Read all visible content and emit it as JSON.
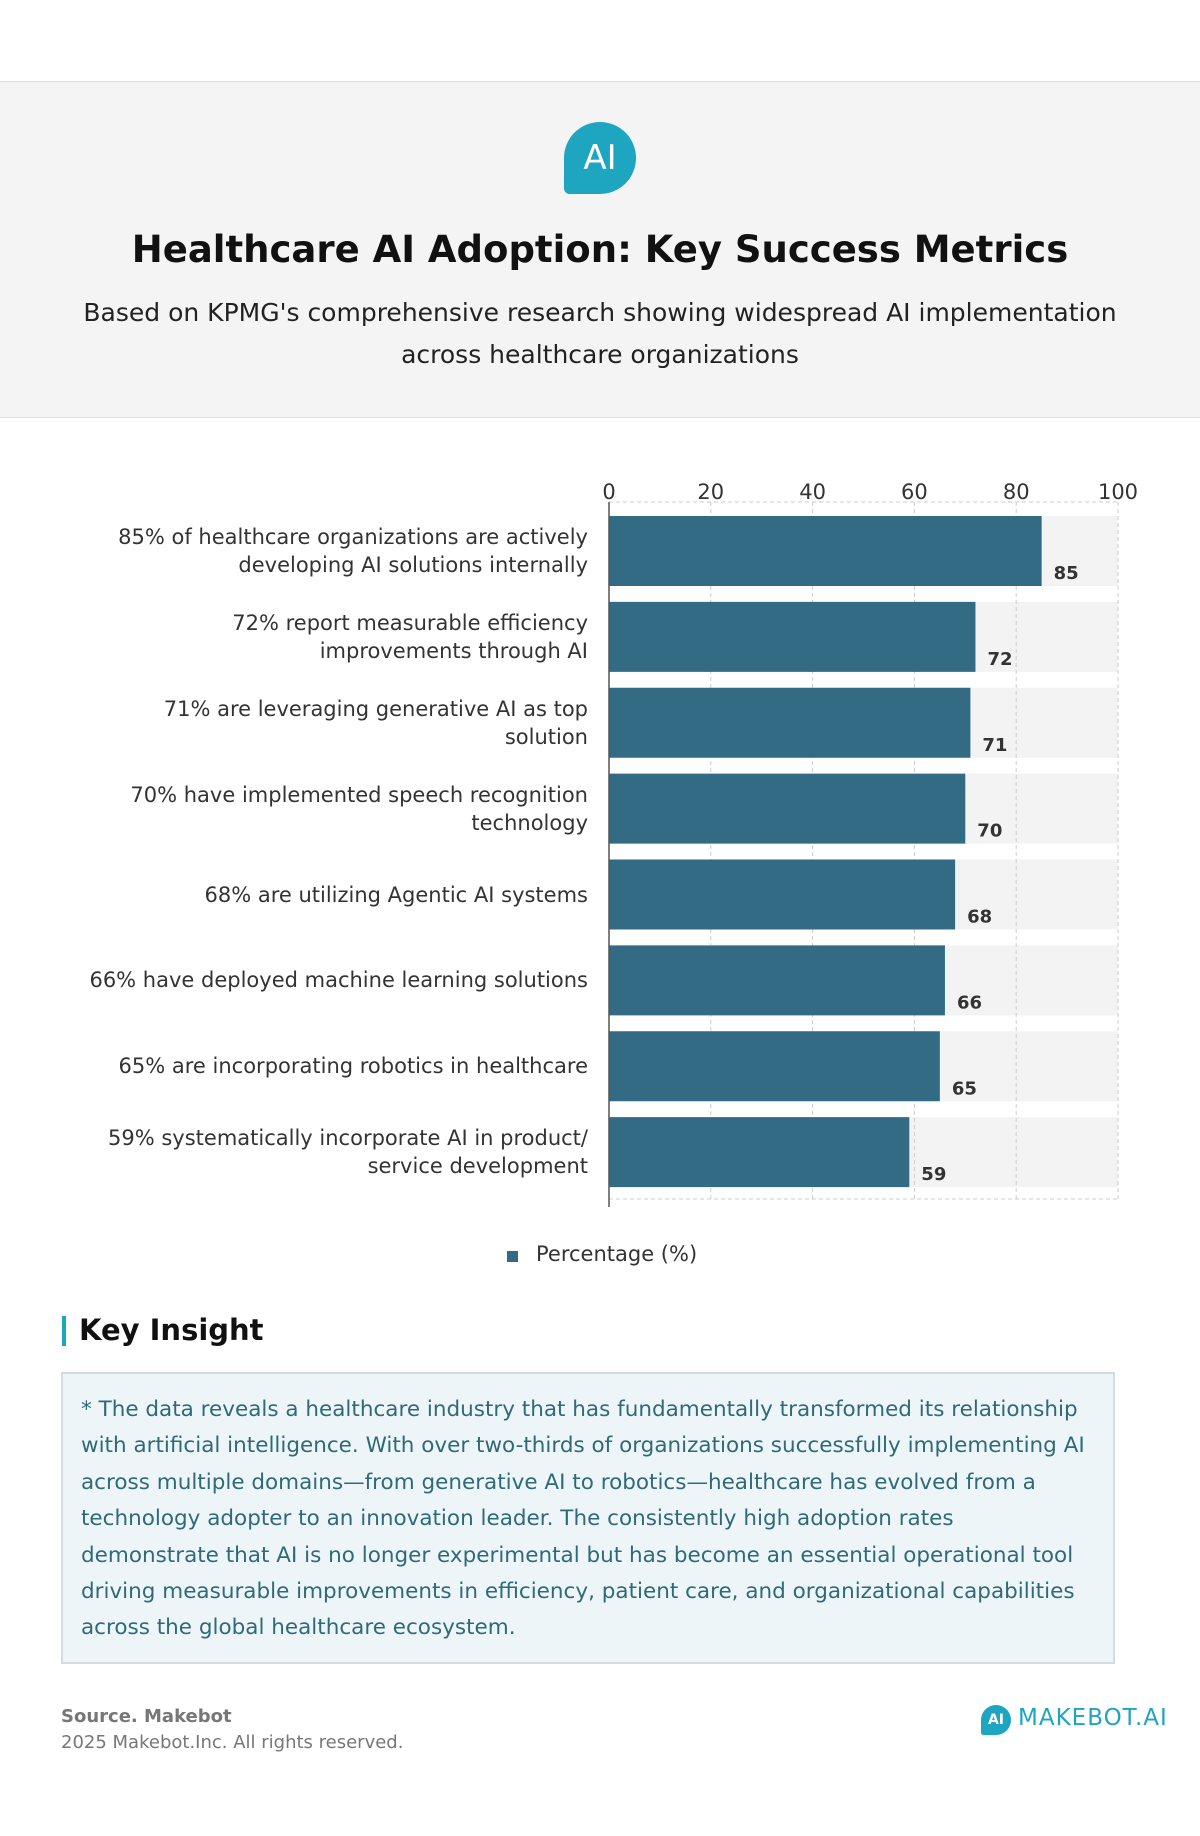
{
  "header": {
    "icon": "AI",
    "title": "Healthcare AI Adoption: Key Success Metrics",
    "subtitle": "Based on KPMG's comprehensive research showing widespread AI implementation across healthcare organizations"
  },
  "chart_data": {
    "type": "hbar",
    "categories": [
      "85% of healthcare organizations are actively\ndeveloping AI solutions internally",
      "72% report measurable efficiency\nimprovements through AI",
      "71% are leveraging generative AI as top\nsolution",
      "70% have implemented speech recognition\ntechnology",
      "68% are utilizing Agentic AI systems",
      "66% have deployed machine learning solutions",
      "65% are incorporating robotics in healthcare",
      "59% systematically incorporate AI in product/\nservice development"
    ],
    "series": [
      {
        "name": "Percentage (%)",
        "color": "#336b85",
        "values": [
          85,
          72,
          71,
          70,
          68,
          66,
          65,
          59
        ]
      }
    ],
    "xlim": [
      0,
      100
    ],
    "xticks": [
      0,
      20,
      40,
      60,
      80,
      100
    ],
    "grid": true,
    "legend": "bottom"
  },
  "insight": {
    "heading": "Key Insight",
    "text": "* The data reveals a healthcare industry that has fundamentally transformed its relationship with artificial intelligence.  With over two-thirds of organizations successfully implementing AI across multiple domains—from generative AI to robotics—healthcare has evolved from a technology adopter to an innovation leader.  The consistently high adoption rates demonstrate that AI is no longer experimental but has become an essential operational tool driving measurable improvements in efficiency, patient care, and organizational capabilities across the global healthcare ecosystem."
  },
  "footer": {
    "source": "Source. Makebot",
    "copyright": "2025 Makebot.Inc. All rights reserved.",
    "logo_icon": "AI",
    "logo": "MAKEBOT.AI"
  }
}
